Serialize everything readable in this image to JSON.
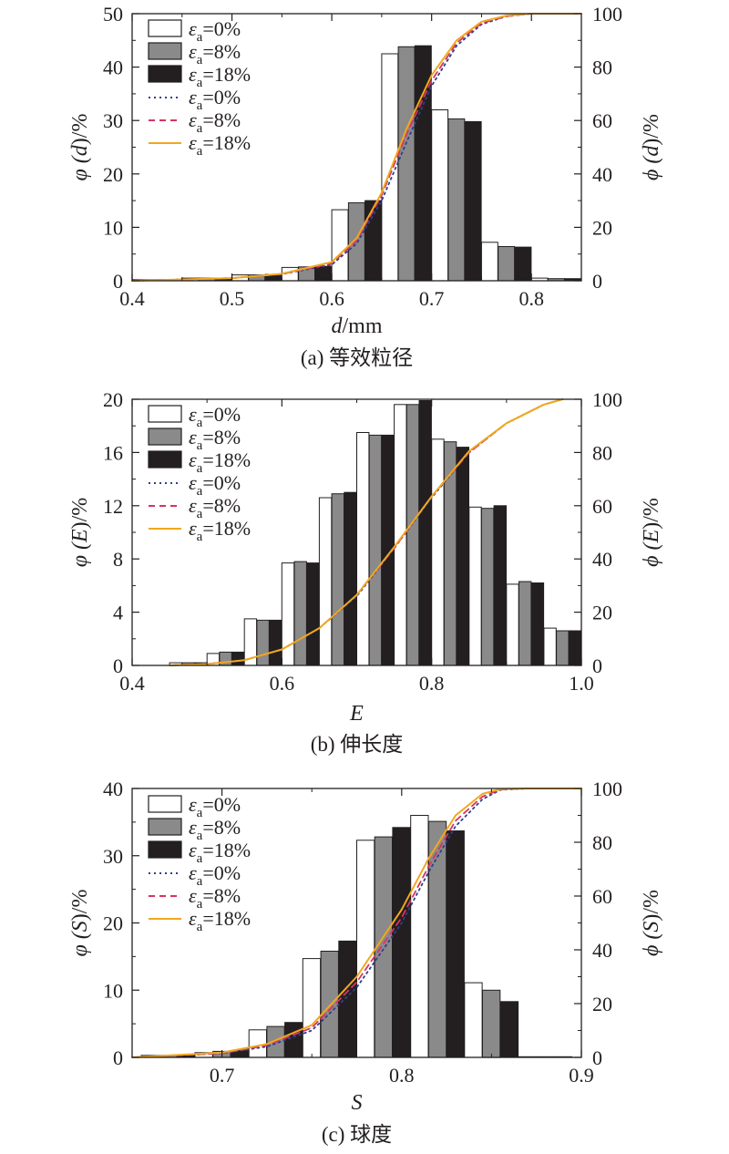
{
  "chart_data": [
    {
      "type": "bar",
      "caption": "(a) 等效粒径",
      "xlabel": "d/mm",
      "ylabel_left": "φ (d)/%",
      "ylabel_right": "ϕ (d)/%",
      "xlim": [
        0.4,
        0.85
      ],
      "ylim_left": [
        0,
        50
      ],
      "ylim_right": [
        0,
        100
      ],
      "x_ticks": [
        "0.4",
        "0.5",
        "0.6",
        "0.7",
        "0.8"
      ],
      "x_tick_values": [
        0.4,
        0.5,
        0.6,
        0.7,
        0.8
      ],
      "y_ticks_left": [
        "0",
        "10",
        "20",
        "30",
        "40",
        "50"
      ],
      "y_ticks_right": [
        "0",
        "20",
        "40",
        "60",
        "80",
        "100"
      ],
      "bin_width": 0.05,
      "bin_centers": [
        0.425,
        0.475,
        0.525,
        0.575,
        0.625,
        0.675,
        0.725,
        0.775,
        0.825
      ],
      "series": [
        {
          "name": "εa=0%",
          "values": [
            0.2,
            0.5,
            1.1,
            2.5,
            13.3,
            42.5,
            32.0,
            7.2,
            0.5
          ]
        },
        {
          "name": "εa=8%",
          "values": [
            0.2,
            0.5,
            1.1,
            2.6,
            14.6,
            43.8,
            30.3,
            6.4,
            0.4
          ]
        },
        {
          "name": "εa=18%",
          "values": [
            0.2,
            0.5,
            1.2,
            2.7,
            15.0,
            44.0,
            29.8,
            6.3,
            0.4
          ]
        }
      ],
      "cumulative": [
        {
          "name": "εa=0%",
          "x": [
            0.4,
            0.5,
            0.55,
            0.6,
            0.625,
            0.65,
            0.675,
            0.7,
            0.725,
            0.75,
            0.775,
            0.8,
            0.85
          ],
          "y": [
            0,
            1,
            2.5,
            6,
            14,
            30,
            52,
            73,
            88,
            96,
            99,
            100,
            100
          ]
        },
        {
          "name": "εa=8%",
          "x": [
            0.4,
            0.5,
            0.55,
            0.6,
            0.625,
            0.65,
            0.675,
            0.7,
            0.725,
            0.75,
            0.775,
            0.8,
            0.85
          ],
          "y": [
            0,
            1,
            2.5,
            6.5,
            15,
            32,
            55,
            75,
            89,
            96.5,
            99,
            100,
            100
          ]
        },
        {
          "name": "εa=18%",
          "x": [
            0.4,
            0.5,
            0.55,
            0.6,
            0.625,
            0.65,
            0.675,
            0.7,
            0.725,
            0.75,
            0.775,
            0.8,
            0.85
          ],
          "y": [
            0,
            1,
            2.6,
            7,
            16,
            33,
            57,
            77,
            90,
            97,
            99.3,
            100,
            100
          ]
        }
      ]
    },
    {
      "type": "bar",
      "caption": "(b) 伸长度",
      "xlabel": "E",
      "ylabel_left": "φ (E)/%",
      "ylabel_right": "ϕ (E)/%",
      "xlim": [
        0.4,
        1.0
      ],
      "ylim_left": [
        0,
        20
      ],
      "ylim_right": [
        0,
        100
      ],
      "x_ticks": [
        "0.4",
        "0.6",
        "0.8",
        "1.0"
      ],
      "x_tick_values": [
        0.4,
        0.6,
        0.8,
        1.0
      ],
      "y_ticks_left": [
        "0",
        "4",
        "8",
        "12",
        "16",
        "20"
      ],
      "y_ticks_right": [
        "0",
        "20",
        "40",
        "60",
        "80",
        "100"
      ],
      "bin_width": 0.05,
      "bin_centers": [
        0.475,
        0.525,
        0.575,
        0.625,
        0.675,
        0.725,
        0.775,
        0.825,
        0.875,
        0.925,
        0.975
      ],
      "series": [
        {
          "name": "εa=0%",
          "values": [
            0.2,
            0.9,
            3.5,
            7.7,
            12.6,
            17.5,
            19.6,
            17.0,
            11.9,
            6.1,
            2.8
          ]
        },
        {
          "name": "εa=8%",
          "values": [
            0.2,
            1.0,
            3.4,
            7.8,
            12.9,
            17.3,
            19.6,
            16.8,
            11.8,
            6.3,
            2.6
          ]
        },
        {
          "name": "εa=18%",
          "values": [
            0.2,
            1.0,
            3.4,
            7.7,
            13.0,
            17.3,
            19.9,
            16.4,
            12.0,
            6.2,
            2.6
          ]
        }
      ],
      "cumulative": [
        {
          "name": "εa=0%",
          "x": [
            0.45,
            0.5,
            0.55,
            0.6,
            0.65,
            0.7,
            0.75,
            0.8,
            0.85,
            0.9,
            0.95,
            0.975
          ],
          "y": [
            0,
            0.5,
            2,
            6,
            14,
            26,
            44,
            63,
            80,
            91,
            98,
            100
          ]
        },
        {
          "name": "εa=8%",
          "x": [
            0.45,
            0.5,
            0.55,
            0.6,
            0.65,
            0.7,
            0.75,
            0.8,
            0.85,
            0.9,
            0.95,
            0.975
          ],
          "y": [
            0,
            0.5,
            2,
            6,
            14,
            26.5,
            44,
            63.5,
            80,
            91,
            98,
            100
          ]
        },
        {
          "name": "εa=18%",
          "x": [
            0.45,
            0.5,
            0.55,
            0.6,
            0.65,
            0.7,
            0.75,
            0.8,
            0.85,
            0.9,
            0.95,
            0.975
          ],
          "y": [
            0,
            0.5,
            2,
            6,
            14,
            26.5,
            44.5,
            63.5,
            80.5,
            91,
            98,
            100
          ]
        }
      ]
    },
    {
      "type": "bar",
      "caption": "(c) 球度",
      "xlabel": "S",
      "ylabel_left": "φ (S)/%",
      "ylabel_right": "ϕ (S)/%",
      "xlim": [
        0.65,
        0.9
      ],
      "ylim_left": [
        0,
        40
      ],
      "ylim_right": [
        0,
        100
      ],
      "x_ticks": [
        "0.7",
        "0.8",
        "0.9"
      ],
      "x_tick_values": [
        0.7,
        0.8,
        0.9
      ],
      "y_ticks_left": [
        "0",
        "10",
        "20",
        "30",
        "40"
      ],
      "y_ticks_right": [
        "0",
        "20",
        "40",
        "60",
        "80",
        "100"
      ],
      "bin_width": 0.03,
      "bin_centers": [
        0.67,
        0.7,
        0.73,
        0.76,
        0.79,
        0.82,
        0.85,
        0.88
      ],
      "series": [
        {
          "name": "εa=0%",
          "values": [
            0.3,
            0.7,
            4.1,
            14.7,
            32.3,
            36.0,
            11.1,
            0.1
          ]
        },
        {
          "name": "εa=8%",
          "values": [
            0.3,
            0.9,
            4.6,
            15.8,
            32.8,
            35.1,
            10.0,
            0.1
          ]
        },
        {
          "name": "εa=18%",
          "values": [
            0.3,
            1.0,
            5.2,
            17.3,
            34.2,
            33.7,
            8.3,
            0.1
          ]
        }
      ],
      "cumulative": [
        {
          "name": "εa=0%",
          "x": [
            0.65,
            0.7,
            0.725,
            0.75,
            0.775,
            0.8,
            0.815,
            0.83,
            0.845,
            0.855,
            0.87,
            0.9
          ],
          "y": [
            0,
            1.5,
            4,
            10,
            26,
            50,
            69,
            86,
            96,
            99.5,
            100,
            100
          ]
        },
        {
          "name": "εa=8%",
          "x": [
            0.65,
            0.7,
            0.725,
            0.75,
            0.775,
            0.8,
            0.815,
            0.83,
            0.845,
            0.855,
            0.87,
            0.9
          ],
          "y": [
            0,
            1.5,
            4.5,
            11,
            28,
            52,
            71,
            88,
            97,
            99.6,
            100,
            100
          ]
        },
        {
          "name": "εa=18%",
          "x": [
            0.65,
            0.7,
            0.725,
            0.75,
            0.775,
            0.8,
            0.815,
            0.83,
            0.845,
            0.855,
            0.87,
            0.9
          ],
          "y": [
            0,
            1.8,
            5,
            12,
            30,
            55,
            74,
            90,
            98,
            99.8,
            100,
            100
          ]
        }
      ]
    }
  ],
  "legend": {
    "entries": [
      {
        "label": "εa=0%",
        "symbol": "bar",
        "color": "#ffffff"
      },
      {
        "label": "εa=8%",
        "symbol": "bar",
        "color": "#8a8a8a"
      },
      {
        "label": "εa=18%",
        "symbol": "bar",
        "color": "#231f20"
      },
      {
        "label": "εa=0%",
        "symbol": "line",
        "color": "#2e3f8f",
        "dash": "dotted"
      },
      {
        "label": "εa=8%",
        "symbol": "line",
        "color": "#d8345f",
        "dash": "dashed"
      },
      {
        "label": "εa=18%",
        "symbol": "line",
        "color": "#f0a81e",
        "dash": "solid"
      }
    ]
  },
  "colors": {
    "bar_0": "#ffffff",
    "bar_8": "#8a8a8a",
    "bar_18": "#231f20",
    "line_0": "#2e3f8f",
    "line_8": "#d8345f",
    "line_18": "#f0a81e",
    "axis": "#231f20"
  }
}
